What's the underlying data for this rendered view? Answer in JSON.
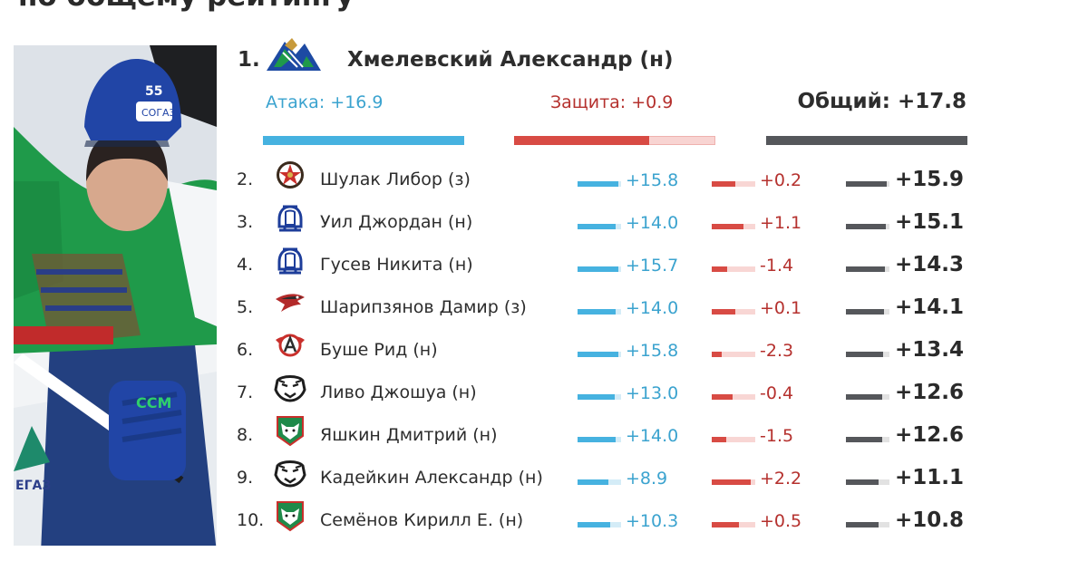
{
  "header": {
    "title": "по общему рейтингу"
  },
  "colors": {
    "attack": "#46b2e0",
    "defense": "#d84b44",
    "total": "#55575b",
    "attack_text": "#3ba3cf",
    "defense_text": "#b5312e"
  },
  "photo": {
    "icon": "hockey-player-photo"
  },
  "leader": {
    "rank": "1.",
    "name": "Хмелевский Александр (н)",
    "team_logo": "salavat-yulaev-logo",
    "attack_label": "Атака: +16.9",
    "defense_label": "Защита: +0.9",
    "total_label": "Общий: +17.8",
    "attack_fill": 1.0,
    "defense_fill": 0.67,
    "total_fill": 1.0
  },
  "players": [
    {
      "rank": "2.",
      "name": "Шулак Либор (з)",
      "team_logo": "avangard-star-logo",
      "attack": "+15.8",
      "defense": "+0.2",
      "total": "+15.9",
      "attack_fill": 0.93,
      "defense_fill": 0.55,
      "total_fill": 0.93
    },
    {
      "rank": "3.",
      "name": "Уил Джордан (н)",
      "team_logo": "dynamo-logo",
      "attack": "+14.0",
      "defense": "+1.1",
      "total": "+15.1",
      "attack_fill": 0.88,
      "defense_fill": 0.72,
      "total_fill": 0.92
    },
    {
      "rank": "4.",
      "name": "Гусев Никита (н)",
      "team_logo": "dynamo-logo",
      "attack": "+15.7",
      "defense": "-1.4",
      "total": "+14.3",
      "attack_fill": 0.93,
      "defense_fill": 0.35,
      "total_fill": 0.9
    },
    {
      "rank": "5.",
      "name": "Шарипзянов Дамир (з)",
      "team_logo": "avangard-hawk-logo",
      "attack": "+14.0",
      "defense": "+0.1",
      "total": "+14.1",
      "attack_fill": 0.88,
      "defense_fill": 0.55,
      "total_fill": 0.88
    },
    {
      "rank": "6.",
      "name": "Буше Рид (н)",
      "team_logo": "avtomobilist-logo",
      "attack": "+15.8",
      "defense": "-2.3",
      "total": "+13.4",
      "attack_fill": 0.93,
      "defense_fill": 0.22,
      "total_fill": 0.86
    },
    {
      "rank": "7.",
      "name": "Ливо Джошуа (н)",
      "team_logo": "traktor-logo",
      "attack": "+13.0",
      "defense": "-0.4",
      "total": "+12.6",
      "attack_fill": 0.85,
      "defense_fill": 0.48,
      "total_fill": 0.84
    },
    {
      "rank": "8.",
      "name": "Яшкин Дмитрий (н)",
      "team_logo": "ak-bars-logo",
      "attack": "+14.0",
      "defense": "-1.5",
      "total": "+12.6",
      "attack_fill": 0.88,
      "defense_fill": 0.34,
      "total_fill": 0.84
    },
    {
      "rank": "9.",
      "name": "Кадейкин Александр (н)",
      "team_logo": "traktor-logo",
      "attack": "+8.9",
      "defense": "+2.2",
      "total": "+11.1",
      "attack_fill": 0.7,
      "defense_fill": 0.9,
      "total_fill": 0.75
    },
    {
      "rank": "10.",
      "name": "Семёнов Кирилл Е. (н)",
      "team_logo": "ak-bars-logo",
      "attack": "+10.3",
      "defense": "+0.5",
      "total": "+10.8",
      "attack_fill": 0.76,
      "defense_fill": 0.62,
      "total_fill": 0.74
    }
  ]
}
